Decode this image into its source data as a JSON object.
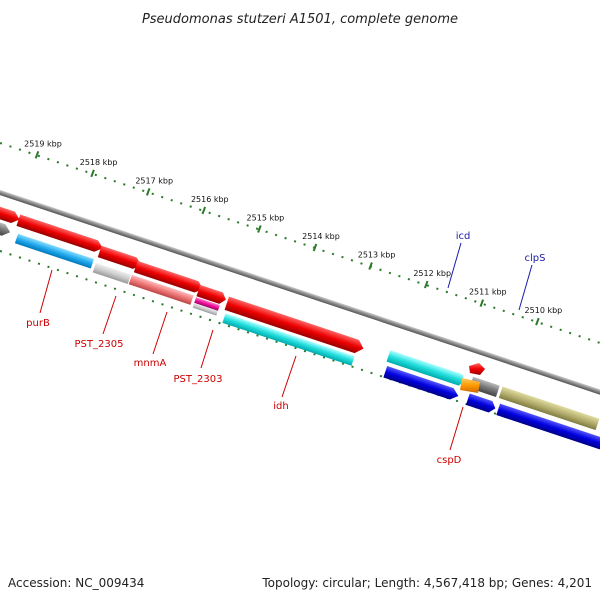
{
  "title": "Pseudomonas stutzeri A1501, complete genome",
  "ticks": [
    "2519 kbp",
    "2518 kbp",
    "2517 kbp",
    "2516 kbp",
    "2515 kbp",
    "2514 kbp",
    "2513 kbp",
    "2512 kbp",
    "2511 kbp",
    "2510 kbp"
  ],
  "gene_labels": {
    "purB": "purB",
    "PST_2305": "PST_2305",
    "mnmA": "mnmA",
    "PST_2303": "PST_2303",
    "idh": "idh",
    "icd": "icd",
    "clpS": "clpS",
    "cspD": "cspD"
  },
  "footer": {
    "accession": "Accession: NC_009434",
    "topology": "Topology: circular; Length: 4,567,418 bp; Genes: 4,201"
  },
  "colors": {
    "forward_cds": "#ee0000",
    "reverse_cds": "#00cccc",
    "blue_cds": "#0000dd",
    "gray_cds": "#888888",
    "olive_cds": "#b5b070",
    "tick_green": "#2a7a2a"
  }
}
